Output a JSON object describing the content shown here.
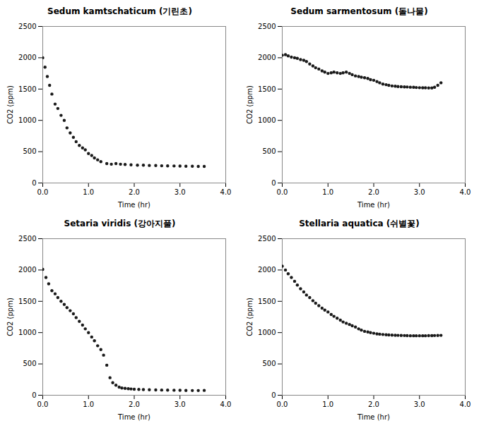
{
  "chart_data": [
    {
      "type": "scatter",
      "title": "Sedum kamtschaticum (기린초)",
      "xlabel": "Time (hr)",
      "ylabel": "CO2 (ppm)",
      "color": "#1a1a1a",
      "x": [
        0.0,
        0.05,
        0.1,
        0.15,
        0.2,
        0.27,
        0.33,
        0.4,
        0.47,
        0.53,
        0.6,
        0.67,
        0.73,
        0.8,
        0.87,
        0.93,
        1.0,
        1.07,
        1.13,
        1.2,
        1.27,
        1.4,
        1.5,
        1.6,
        1.7,
        1.8,
        1.93,
        2.07,
        2.2,
        2.33,
        2.47,
        2.6,
        2.73,
        2.87,
        3.0,
        3.13,
        3.27,
        3.4,
        3.53
      ],
      "values": [
        2000,
        1850,
        1700,
        1560,
        1420,
        1260,
        1190,
        1080,
        1000,
        880,
        800,
        730,
        660,
        600,
        560,
        530,
        470,
        440,
        400,
        370,
        340,
        310,
        300,
        310,
        300,
        295,
        290,
        285,
        285,
        280,
        278,
        275,
        273,
        272,
        270,
        268,
        267,
        265,
        264
      ],
      "xlim": [
        0,
        4.0
      ],
      "ylim": [
        0,
        2500
      ],
      "xticks": [
        {
          "value": 0,
          "label": "0.0"
        },
        {
          "value": 1,
          "label": "1.0"
        },
        {
          "value": 2,
          "label": "2.0"
        },
        {
          "value": 3,
          "label": "3.0"
        },
        {
          "value": 4,
          "label": "4.0"
        }
      ],
      "yticks": [
        0,
        500,
        1000,
        1500,
        2000,
        2500
      ]
    },
    {
      "type": "scatter",
      "title": "Sedum sarmentosum (돌나물)",
      "xlabel": "Time (hr)",
      "ylabel": "CO2 (ppm)",
      "color": "#1a1a1a",
      "x": [
        0.0,
        0.07,
        0.13,
        0.2,
        0.27,
        0.33,
        0.4,
        0.47,
        0.53,
        0.6,
        0.67,
        0.73,
        0.8,
        0.87,
        0.93,
        1.0,
        1.07,
        1.13,
        1.2,
        1.27,
        1.33,
        1.4,
        1.47,
        1.53,
        1.6,
        1.67,
        1.73,
        1.8,
        1.87,
        1.93,
        2.0,
        2.07,
        2.13,
        2.2,
        2.27,
        2.33,
        2.4,
        2.47,
        2.53,
        2.6,
        2.67,
        2.73,
        2.8,
        2.87,
        2.93,
        3.0,
        3.07,
        3.13,
        3.2,
        3.27,
        3.33,
        3.4,
        3.47
      ],
      "values": [
        2040,
        2050,
        2030,
        2010,
        2000,
        1990,
        1970,
        1960,
        1940,
        1900,
        1870,
        1840,
        1820,
        1790,
        1770,
        1750,
        1760,
        1770,
        1760,
        1750,
        1760,
        1770,
        1750,
        1730,
        1710,
        1700,
        1690,
        1680,
        1670,
        1650,
        1640,
        1620,
        1600,
        1580,
        1570,
        1560,
        1550,
        1545,
        1540,
        1538,
        1535,
        1533,
        1530,
        1528,
        1525,
        1522,
        1521,
        1520,
        1518,
        1517,
        1528,
        1560,
        1600
      ],
      "xlim": [
        0,
        4.0
      ],
      "ylim": [
        0,
        2500
      ],
      "xticks": [
        {
          "value": 0,
          "label": "0.0"
        },
        {
          "value": 1,
          "label": "1.0"
        },
        {
          "value": 2,
          "label": "2.0"
        },
        {
          "value": 3,
          "label": "3.0"
        },
        {
          "value": 4,
          "label": "4.0"
        }
      ],
      "yticks": [
        0,
        500,
        1000,
        1500,
        2000,
        2500
      ]
    },
    {
      "type": "scatter",
      "title": "Setaria viridis (강아지풀)",
      "xlabel": "Time (hr)",
      "ylabel": "CO2 (ppm)",
      "color": "#1a1a1a",
      "x": [
        0.0,
        0.07,
        0.13,
        0.2,
        0.27,
        0.33,
        0.4,
        0.47,
        0.53,
        0.6,
        0.67,
        0.73,
        0.8,
        0.87,
        0.93,
        1.0,
        1.07,
        1.13,
        1.2,
        1.27,
        1.33,
        1.4,
        1.47,
        1.53,
        1.6,
        1.67,
        1.73,
        1.8,
        1.87,
        1.93,
        2.0,
        2.1,
        2.2,
        2.33,
        2.47,
        2.6,
        2.73,
        2.87,
        3.0,
        3.13,
        3.27,
        3.4,
        3.53
      ],
      "values": [
        2010,
        1880,
        1780,
        1670,
        1620,
        1560,
        1500,
        1450,
        1400,
        1350,
        1300,
        1240,
        1180,
        1120,
        1060,
        1000,
        930,
        870,
        790,
        730,
        640,
        480,
        280,
        200,
        160,
        130,
        115,
        110,
        105,
        100,
        95,
        93,
        90,
        88,
        85,
        83,
        82,
        80,
        78,
        76,
        75,
        75,
        77
      ],
      "xlim": [
        0,
        4.0
      ],
      "ylim": [
        0,
        2500
      ],
      "xticks": [
        {
          "value": 0,
          "label": "0.0"
        },
        {
          "value": 1,
          "label": "1.0"
        },
        {
          "value": 2,
          "label": "2.0"
        },
        {
          "value": 3,
          "label": "3.0"
        },
        {
          "value": 4,
          "label": "4.0"
        }
      ],
      "yticks": [
        0,
        500,
        1000,
        1500,
        2000,
        2500
      ]
    },
    {
      "type": "scatter",
      "title": "Stellaria aquatica (쉬별꽃)",
      "xlabel": "Time (hr)",
      "ylabel": "CO2 (ppm)",
      "color": "#1a1a1a",
      "x": [
        0.0,
        0.07,
        0.13,
        0.2,
        0.27,
        0.33,
        0.4,
        0.47,
        0.53,
        0.6,
        0.67,
        0.73,
        0.8,
        0.87,
        0.93,
        1.0,
        1.07,
        1.13,
        1.2,
        1.27,
        1.33,
        1.4,
        1.47,
        1.53,
        1.6,
        1.67,
        1.73,
        1.8,
        1.87,
        1.93,
        2.0,
        2.07,
        2.13,
        2.2,
        2.27,
        2.33,
        2.4,
        2.47,
        2.53,
        2.6,
        2.67,
        2.73,
        2.8,
        2.87,
        2.93,
        3.0,
        3.07,
        3.13,
        3.2,
        3.27,
        3.33,
        3.4,
        3.47
      ],
      "values": [
        2060,
        2000,
        1940,
        1880,
        1820,
        1760,
        1700,
        1650,
        1600,
        1560,
        1510,
        1470,
        1430,
        1390,
        1360,
        1330,
        1290,
        1260,
        1230,
        1200,
        1170,
        1150,
        1130,
        1110,
        1090,
        1060,
        1040,
        1020,
        1010,
        1000,
        990,
        980,
        975,
        970,
        965,
        962,
        960,
        958,
        956,
        955,
        953,
        952,
        950,
        950,
        950,
        950,
        950,
        950,
        951,
        952,
        953,
        954,
        956
      ],
      "xlim": [
        0,
        4.0
      ],
      "ylim": [
        0,
        2500
      ],
      "xticks": [
        {
          "value": 0,
          "label": "0.0"
        },
        {
          "value": 1,
          "label": "1.0"
        },
        {
          "value": 2,
          "label": "2.0"
        },
        {
          "value": 3,
          "label": "3.0"
        },
        {
          "value": 4,
          "label": "4.0"
        }
      ],
      "yticks": [
        0,
        500,
        1000,
        1500,
        2000,
        2500
      ]
    }
  ]
}
